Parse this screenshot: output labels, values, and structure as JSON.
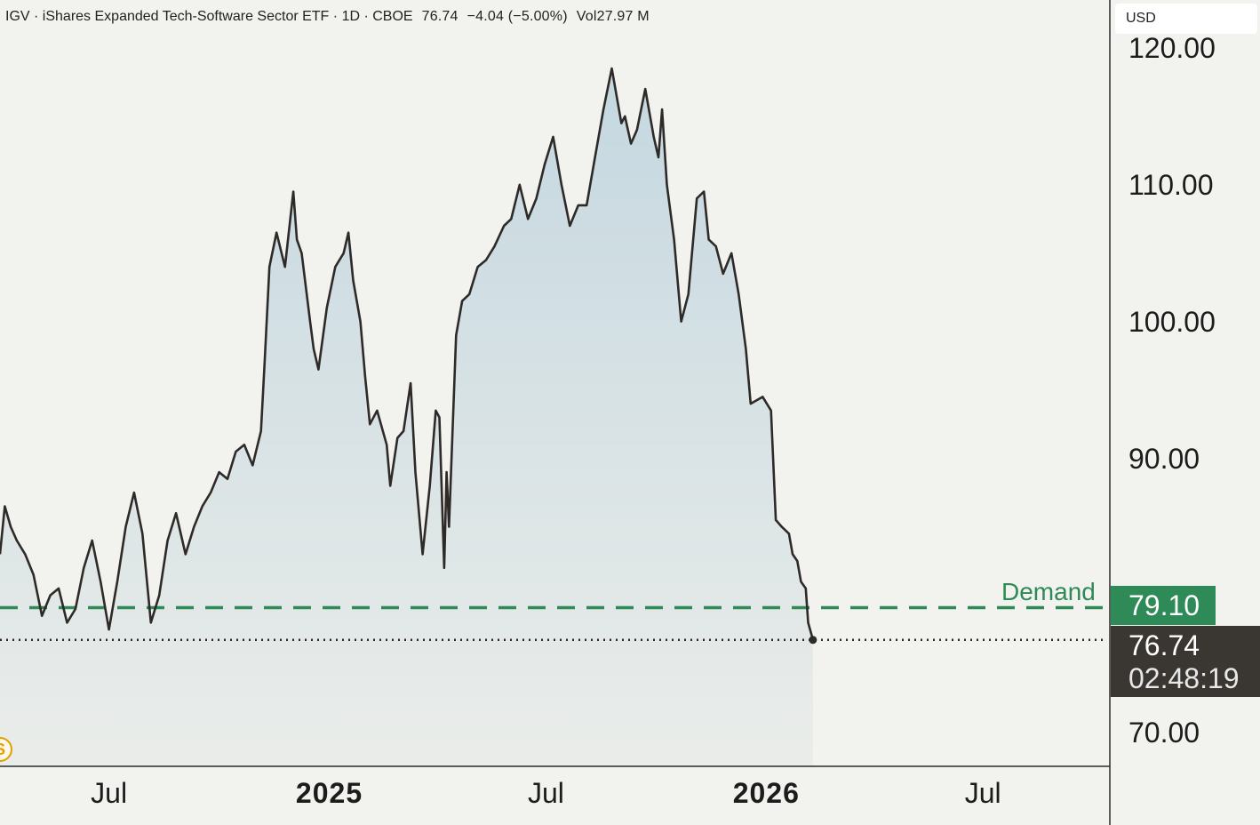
{
  "legend": {
    "symbol": "IGV",
    "name": "iShares Expanded Tech-Software Sector ETF",
    "interval": "1D",
    "exchange": "CBOE",
    "last": "76.74",
    "change": "−4.04 (−5.00%)",
    "volume": "Vol27.97 M"
  },
  "currency": "USD",
  "demand": {
    "label": "Demand",
    "value": "79.10"
  },
  "last_price": {
    "value": "76.74",
    "countdown": "02:48:19"
  },
  "colors": {
    "line": "#2e2a27",
    "fill_top": "#c4d7e0",
    "demand": "#2e8a57",
    "background": "#f2f2ee",
    "badge_dark": "#3a3632",
    "events_icon": "#e0a000"
  },
  "events_icon": {
    "name": "dividend-icon",
    "letter": "S"
  },
  "chart_data": {
    "type": "area",
    "title": "",
    "xlabel": "",
    "ylabel": "",
    "x_ticks": [
      {
        "label": "Jul",
        "date": "2024-07-01"
      },
      {
        "label": "2025",
        "date": "2025-01-01"
      },
      {
        "label": "Jul",
        "date": "2025-07-01"
      },
      {
        "label": "2026",
        "date": "2026-01-01"
      },
      {
        "label": "Jul",
        "date": "2026-07-01"
      }
    ],
    "y_ticks": [
      "120.00",
      "110.00",
      "100.00",
      "90.00",
      "70.00"
    ],
    "xlim": [
      "2024-04-01",
      "2026-10-15"
    ],
    "ylim": [
      67.5,
      123.5
    ],
    "grid": false,
    "reference_lines": [
      {
        "name": "Demand",
        "value": 79.1,
        "style": "dashed",
        "color": "#2e8a57"
      },
      {
        "name": "Last price",
        "value": 76.74,
        "style": "dotted",
        "color": "#2e2a27"
      }
    ],
    "series": [
      {
        "x": [
          "2024-04-01",
          "2024-04-05",
          "2024-04-10",
          "2024-04-15",
          "2024-04-22",
          "2024-04-29",
          "2024-05-06",
          "2024-05-13",
          "2024-05-20",
          "2024-05-27",
          "2024-06-03",
          "2024-06-10",
          "2024-06-17",
          "2024-06-24",
          "2024-07-01",
          "2024-07-08",
          "2024-07-15",
          "2024-07-22",
          "2024-07-29",
          "2024-08-05",
          "2024-08-12",
          "2024-08-19",
          "2024-08-26",
          "2024-09-03",
          "2024-09-10",
          "2024-09-17",
          "2024-09-24",
          "2024-10-01",
          "2024-10-08",
          "2024-10-15",
          "2024-10-22",
          "2024-10-29",
          "2024-11-05",
          "2024-11-08",
          "2024-11-12",
          "2024-11-18",
          "2024-11-25",
          "2024-12-02",
          "2024-12-05",
          "2024-12-09",
          "2024-12-16",
          "2024-12-19",
          "2024-12-23",
          "2024-12-30",
          "2025-01-06",
          "2025-01-13",
          "2025-01-17",
          "2025-01-21",
          "2025-01-27",
          "2025-01-31",
          "2025-02-04",
          "2025-02-10",
          "2025-02-18",
          "2025-02-21",
          "2025-02-27",
          "2025-03-04",
          "2025-03-10",
          "2025-03-14",
          "2025-03-20",
          "2025-03-26",
          "2025-03-31",
          "2025-04-03",
          "2025-04-07",
          "2025-04-09",
          "2025-04-11",
          "2025-04-17",
          "2025-04-22",
          "2025-04-28",
          "2025-05-05",
          "2025-05-12",
          "2025-05-19",
          "2025-05-27",
          "2025-06-02",
          "2025-06-09",
          "2025-06-16",
          "2025-06-23",
          "2025-06-30",
          "2025-07-07",
          "2025-07-14",
          "2025-07-21",
          "2025-07-28",
          "2025-08-04",
          "2025-08-11",
          "2025-08-18",
          "2025-08-25",
          "2025-09-02",
          "2025-09-05",
          "2025-09-10",
          "2025-09-15",
          "2025-09-22",
          "2025-09-29",
          "2025-10-03",
          "2025-10-06",
          "2025-10-10",
          "2025-10-16",
          "2025-10-22",
          "2025-10-28",
          "2025-11-04",
          "2025-11-10",
          "2025-11-14",
          "2025-11-20",
          "2025-11-26",
          "2025-12-03",
          "2025-12-09",
          "2025-12-15",
          "2025-12-19",
          "2025-12-29",
          "2026-01-05",
          "2026-01-09",
          "2026-01-14",
          "2026-01-20",
          "2026-01-23",
          "2026-01-27",
          "2026-01-30",
          "2026-02-03",
          "2026-02-05",
          "2026-02-09"
        ],
        "y": [
          83.0,
          86.5,
          85.0,
          84.0,
          83.0,
          81.5,
          78.5,
          80.0,
          80.5,
          78.0,
          79.0,
          82.0,
          84.0,
          81.0,
          77.5,
          81.0,
          85.0,
          87.5,
          84.5,
          78.0,
          80.0,
          84.0,
          86.0,
          83.0,
          85.0,
          86.5,
          87.5,
          89.0,
          88.5,
          90.5,
          91.0,
          89.5,
          92.0,
          97.0,
          104.0,
          106.5,
          104.0,
          109.5,
          106.0,
          105.0,
          100.0,
          98.0,
          96.5,
          101.0,
          104.0,
          105.0,
          106.5,
          103.0,
          100.0,
          96.0,
          92.5,
          93.5,
          91.0,
          88.0,
          91.5,
          92.0,
          95.5,
          89.0,
          83.0,
          88.0,
          93.5,
          93.0,
          82.0,
          89.0,
          85.0,
          99.0,
          101.5,
          102.0,
          104.0,
          104.5,
          105.5,
          107.0,
          107.5,
          110.0,
          107.5,
          109.0,
          111.5,
          113.5,
          110.0,
          107.0,
          108.5,
          108.5,
          112.0,
          115.5,
          118.5,
          114.5,
          115.0,
          113.0,
          114.0,
          117.0,
          113.5,
          112.0,
          115.5,
          110.0,
          106.0,
          100.0,
          102.0,
          109.0,
          109.5,
          106.0,
          105.5,
          103.5,
          105.0,
          102.0,
          98.0,
          94.0,
          94.5,
          93.5,
          85.5,
          85.0,
          84.5,
          83.0,
          82.5,
          81.0,
          80.5,
          78.0,
          76.74
        ]
      }
    ]
  }
}
